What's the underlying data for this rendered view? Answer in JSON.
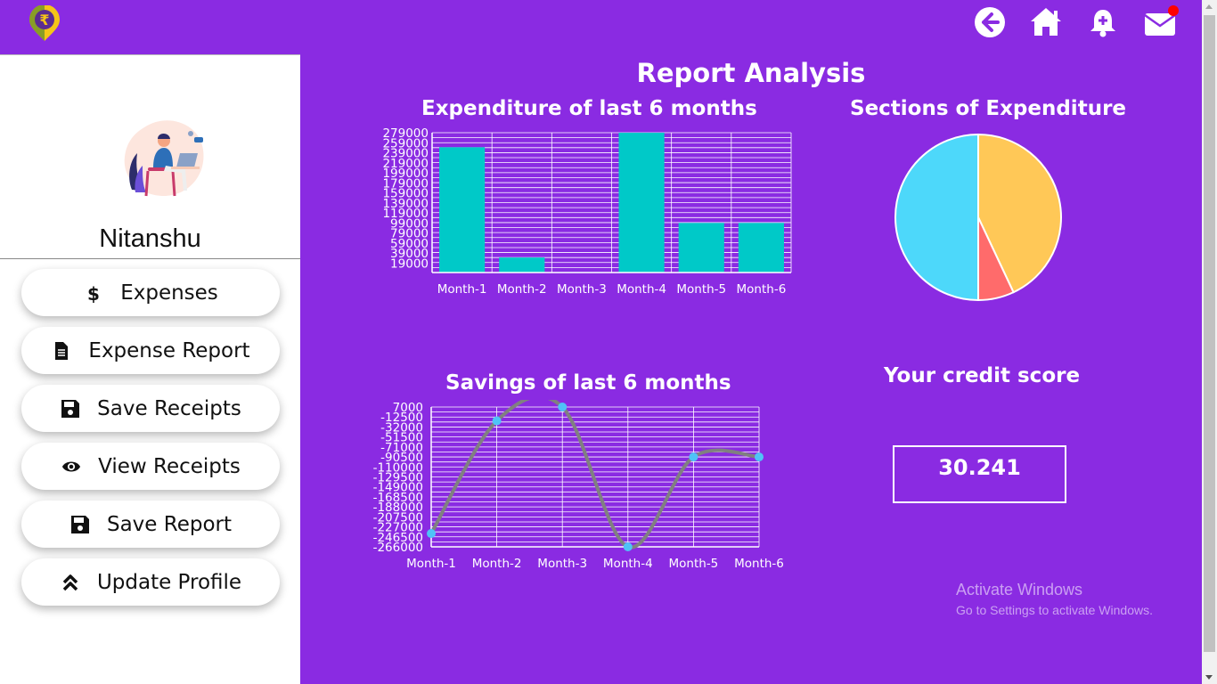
{
  "app": {
    "logo_symbol": "₹",
    "nav_icons": [
      "back-arrow-icon",
      "home-icon",
      "add-notification-icon",
      "mail-icon"
    ],
    "notification_dot_color": "#ff0000"
  },
  "sidebar": {
    "username": "Nitanshu",
    "items": [
      {
        "label": "Expenses",
        "icon": "dollar-icon"
      },
      {
        "label": "Expense Report",
        "icon": "file-icon"
      },
      {
        "label": "Save Receipts",
        "icon": "save-icon"
      },
      {
        "label": "View Receipts",
        "icon": "eye-icon"
      },
      {
        "label": "Save Report",
        "icon": "save-icon"
      },
      {
        "label": "Update Profile",
        "icon": "double-chevron-up-icon"
      }
    ]
  },
  "main": {
    "title": "Report Analysis",
    "expenditure_title": "Expenditure of last 6 months",
    "sections_title": "Sections of Expenditure",
    "savings_title": "Savings of last 6 months",
    "credit_title": "Your credit score",
    "credit_score": "30.241"
  },
  "watermark": {
    "line1": "Activate Windows",
    "line2": "Go to Settings to activate Windows."
  },
  "colors": {
    "background": "#8a2be2",
    "bar": "#00c9c8",
    "line": "#808080",
    "point": "#4fc3f7",
    "pie_yellow": "#ffc857",
    "pie_red": "#ff6b6b",
    "pie_blue": "#4dd8fa"
  },
  "chart_data": [
    {
      "type": "bar",
      "title": "Expenditure of last 6 months",
      "categories": [
        "Month-1",
        "Month-2",
        "Month-3",
        "Month-4",
        "Month-5",
        "Month-6"
      ],
      "values": [
        250000,
        30000,
        1000,
        279000,
        99000,
        99000
      ],
      "yticks": [
        "279000",
        "259000",
        "239000",
        "219000",
        "199000",
        "179000",
        "159000",
        "139000",
        "119000",
        "99000",
        "79000",
        "59000",
        "39000",
        "19000"
      ],
      "ylim": [
        0,
        279000
      ],
      "grid": true
    },
    {
      "type": "pie",
      "title": "Sections of Expenditure",
      "slices": [
        {
          "value": 43,
          "color": "#ffc857"
        },
        {
          "value": 7,
          "color": "#ff6b6b"
        },
        {
          "value": 50,
          "color": "#4dd8fa"
        }
      ]
    },
    {
      "type": "line",
      "title": "Savings of last 6 months",
      "categories": [
        "Month-1",
        "Month-2",
        "Month-3",
        "Month-4",
        "Month-5",
        "Month-6"
      ],
      "values": [
        -240000,
        -20000,
        7000,
        -266000,
        -90500,
        -90500
      ],
      "yticks": [
        "7000",
        "-12500",
        "-32000",
        "-51500",
        "-71000",
        "-90500",
        "-110000",
        "-129500",
        "-149000",
        "-168500",
        "-188000",
        "-207500",
        "-227000",
        "-246500",
        "-266000"
      ],
      "ylim": [
        -266000,
        7000
      ],
      "grid": true,
      "smooth": true
    }
  ]
}
